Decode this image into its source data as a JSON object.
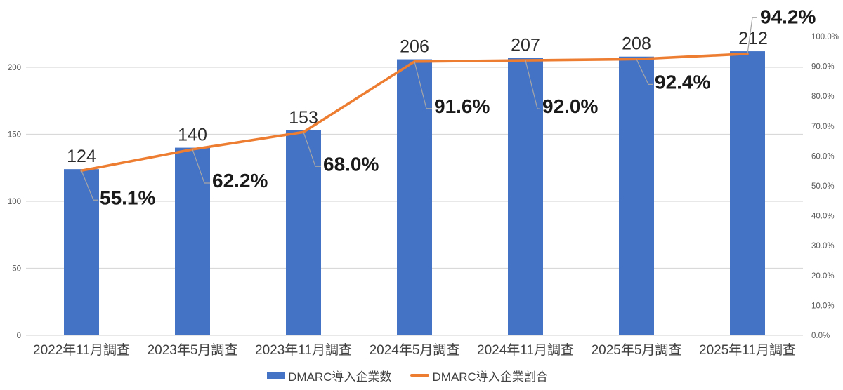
{
  "chart_data": {
    "type": "combo-bar-line",
    "categories": [
      "2022年11月調査",
      "2023年5月調査",
      "2023年11月調査",
      "2024年5月調査",
      "2024年11月調査",
      "2025年5月調査",
      "2025年11月調査"
    ],
    "series": [
      {
        "name": "DMARC導入企業数",
        "type": "bar",
        "axis": "left",
        "color": "#4472C4",
        "values": [
          124,
          140,
          153,
          206,
          207,
          208,
          212
        ],
        "value_labels": [
          "124",
          "140",
          "153",
          "206",
          "207",
          "208",
          "212"
        ]
      },
      {
        "name": "DMARC導入企業割合",
        "type": "line",
        "axis": "right",
        "color": "#ED7D31",
        "values": [
          55.1,
          62.2,
          68.0,
          91.6,
          92.0,
          92.4,
          94.2
        ],
        "value_labels": [
          "55.1%",
          "62.2%",
          "68.0%",
          "91.6%",
          "92.0%",
          "92.4%",
          "94.2%"
        ]
      }
    ],
    "left_axis": {
      "ticks": [
        "0",
        "50",
        "100",
        "150",
        "200"
      ],
      "tick_values": [
        0,
        50,
        100,
        150,
        200
      ],
      "range": [
        0,
        200
      ]
    },
    "right_axis": {
      "ticks": [
        "0.0%",
        "10.0%",
        "20.0%",
        "30.0%",
        "40.0%",
        "50.0%",
        "60.0%",
        "70.0%",
        "80.0%",
        "90.0%",
        "100.0%"
      ],
      "tick_values": [
        0,
        10,
        20,
        30,
        40,
        50,
        60,
        70,
        80,
        90,
        100
      ],
      "range": [
        0,
        100
      ]
    },
    "grid": true,
    "legend_position": "bottom",
    "colors": {
      "bar": "#4472C4",
      "line": "#ED7D31",
      "leader": "#A6A6A6",
      "gridline": "#D9D9D9",
      "axis_text": "#595959",
      "category_text": "#404040",
      "count_label": "#2b2b2b",
      "percent_label": "#1a1a1a"
    }
  },
  "legend": {
    "bar_label": "DMARC導入企業数",
    "line_label": "DMARC導入企業割合"
  }
}
